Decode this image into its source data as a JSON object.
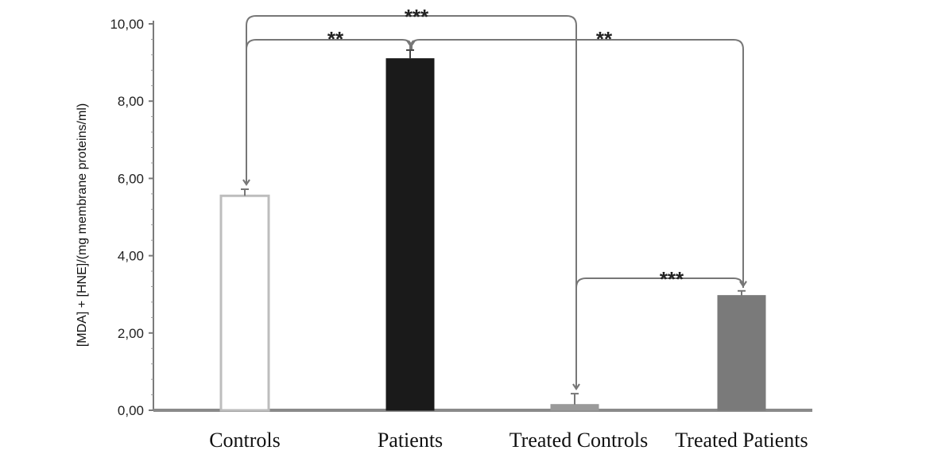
{
  "chart_data": {
    "type": "bar",
    "title": "",
    "xlabel": "",
    "ylabel": "[MDA] + [HNE]/(mg membrane proteins/ml)",
    "ylim": [
      0,
      10
    ],
    "yticks": [
      0,
      2,
      4,
      6,
      8,
      10
    ],
    "ytick_labels": [
      "0,00",
      "2,00",
      "4,00",
      "6,00",
      "8,00",
      "10,00"
    ],
    "grid": false,
    "categories": [
      "Controls",
      "Patients",
      "Treated Controls",
      "Treated Patients"
    ],
    "values": [
      5.55,
      9.1,
      0.15,
      2.97
    ],
    "errors": [
      0.17,
      0.22,
      0.28,
      0.12
    ],
    "bar_colors": [
      "#ffffff",
      "#1a1a1a",
      "#9a9a9a",
      "#7a7a7a"
    ],
    "significance": [
      {
        "from": "Controls",
        "to": "Treated Controls",
        "label": "***"
      },
      {
        "from": "Controls",
        "to": "Patients",
        "label": "**"
      },
      {
        "from": "Patients",
        "to": "Treated Patients",
        "label": "**"
      },
      {
        "from": "Treated Controls",
        "to": "Treated Patients",
        "label": "***"
      }
    ]
  }
}
